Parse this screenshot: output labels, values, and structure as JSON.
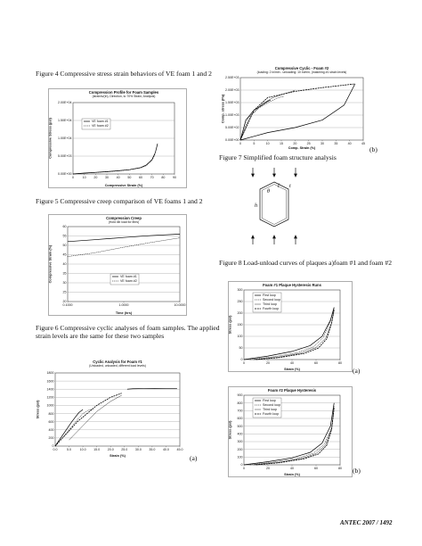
{
  "captions": {
    "fig4": "Figure 4 Compressive stress strain behaviors of VE foam 1 and 2",
    "fig5": "Figure 5 Compressive creep comparison of VE foams 1 and 2",
    "fig6": "Figure 6 Compressive cyclic analyses of foam samples. The applied strain levels are the same for these two samples",
    "fig7": "Figure 7 Simplified foam structure analysis",
    "fig8": "Figure 8 Load-unload curves of plaques a)foam #1 and foam #2"
  },
  "panel_labels": {
    "a": "(a)",
    "b": "(b)"
  },
  "footer": "ANTEC 2007 / 1492",
  "fig7_labels": {
    "l": "l",
    "t": "t",
    "h": "h",
    "theta": "θ"
  },
  "chart_data": [
    {
      "id": "fig4",
      "type": "line",
      "title": "Compression Profile for Foam Samples",
      "subtitle": "(strain/s/(in), Direction, to 70% Strain, Analysis)",
      "xlabel": "Compressive Strain (%)",
      "ylabel": "Compressive Stress (psi)",
      "xlim": [
        0,
        90
      ],
      "ylim": [
        0,
        20000
      ],
      "x_ticks": [
        "0",
        "10",
        "20",
        "30",
        "40",
        "50",
        "60",
        "70",
        "80",
        "90"
      ],
      "y_ticks": [
        "0.00E+00",
        "5.00E+03",
        "1.00E+04",
        "1.50E+04",
        "2.00E+04"
      ],
      "legend": [
        "VE foam #1",
        "VE foam #2"
      ],
      "series": [
        {
          "name": "VE foam #1",
          "x": [
            0,
            10,
            20,
            30,
            40,
            50,
            60,
            65,
            70,
            73,
            75
          ],
          "y": [
            0,
            250,
            450,
            650,
            900,
            1200,
            1800,
            2500,
            4000,
            6000,
            8500
          ]
        },
        {
          "name": "VE foam #2",
          "x": [
            0,
            10,
            20,
            30,
            40,
            50,
            60,
            65,
            70,
            73
          ],
          "y": [
            0,
            220,
            400,
            600,
            850,
            1150,
            1700,
            2300,
            3800,
            5600
          ]
        }
      ]
    },
    {
      "id": "fig5",
      "type": "line",
      "title": "Compression Creep",
      "subtitle": "(Hold 4lb load for 8hrs)",
      "xlabel": "Time (hrs)",
      "ylabel": "Compressive Strain (%)",
      "x_log": true,
      "xlim": [
        0.1,
        10
      ],
      "ylim": [
        20,
        60
      ],
      "x_ticks": [
        "0.1000",
        "1.0000",
        "10.0000"
      ],
      "y_ticks": [
        "20",
        "25",
        "30",
        "35",
        "40",
        "45",
        "50",
        "55",
        "60"
      ],
      "legend": [
        "VE foam #1",
        "VE foam #2"
      ],
      "series": [
        {
          "name": "VE foam #1",
          "x": [
            0.1,
            0.3,
            1,
            3,
            10
          ],
          "y": [
            52,
            53,
            54.2,
            55.2,
            56
          ]
        },
        {
          "name": "VE foam #2",
          "x": [
            0.1,
            0.3,
            1,
            3,
            10
          ],
          "y": [
            44,
            46,
            49,
            51.5,
            54
          ]
        }
      ]
    },
    {
      "id": "fig6a",
      "type": "line",
      "title": "Cyclic Analysis for Foam #1",
      "subtitle": "(Unloaded, unloaded, different load levels)",
      "xlabel": "Strain (%)",
      "ylabel": "Stress (psi)",
      "xlim": [
        0,
        45
      ],
      "ylim": [
        0,
        1800
      ],
      "x_ticks": [
        "0.0",
        "5.0",
        "10.0",
        "15.0",
        "20.0",
        "25.0",
        "30.0",
        "35.0",
        "40.0",
        "45.0"
      ],
      "y_ticks": [
        "0",
        "200",
        "400",
        "600",
        "800",
        "1000",
        "1200",
        "1400",
        "1600",
        "1800"
      ],
      "series": [
        {
          "name": "",
          "x": [
            0,
            3,
            6,
            8.5,
            10
          ],
          "y": [
            0,
            300,
            600,
            820,
            900
          ]
        },
        {
          "name": "",
          "x": [
            2,
            5,
            8,
            10,
            12,
            14
          ],
          "y": [
            150,
            400,
            650,
            800,
            880,
            920
          ]
        },
        {
          "name": "",
          "x": [
            5,
            10,
            15,
            20,
            24
          ],
          "y": [
            150,
            500,
            850,
            1100,
            1250
          ]
        },
        {
          "name": "",
          "x": [
            0,
            8,
            15,
            20,
            24
          ],
          "y": [
            0,
            600,
            1000,
            1200,
            1300
          ]
        },
        {
          "name": "",
          "x": [
            26,
            28,
            32,
            36,
            40,
            44
          ],
          "y": [
            1400,
            1410,
            1415,
            1418,
            1420,
            1420
          ]
        }
      ]
    },
    {
      "id": "fig6b",
      "type": "line",
      "title": "Compressive Cyclic - Foam #2",
      "subtitle": "(loading: 2 in/min - unloading: 10 in/min, (matching #1 strain levels)",
      "xlabel": "Comp. Strain (%)",
      "ylabel": "Comp. stress (Pa)",
      "xlim": [
        0,
        45
      ],
      "ylim": [
        0,
        25000
      ],
      "x_ticks": [
        "0",
        "5",
        "10",
        "15",
        "20",
        "25",
        "30",
        "35",
        "40",
        "45"
      ],
      "y_ticks": [
        "0.00E+00",
        "5.00E+02",
        "1.00E+03",
        "1.50E+03",
        "2.00E+03",
        "2.50E+03"
      ],
      "series": [
        {
          "name": "",
          "x": [
            0,
            2,
            5,
            8,
            10,
            11
          ],
          "y": [
            0,
            8000,
            12000,
            14000,
            15500,
            16000
          ]
        },
        {
          "name": "",
          "x": [
            0,
            3,
            7,
            11,
            14,
            16
          ],
          "y": [
            0,
            9000,
            13000,
            15500,
            17000,
            17500
          ]
        },
        {
          "name": "",
          "x": [
            0,
            4,
            8,
            12,
            16,
            19,
            20
          ],
          "y": [
            0,
            10000,
            14500,
            17000,
            18500,
            19500,
            20000
          ]
        },
        {
          "name": "",
          "x": [
            0,
            5,
            10,
            20,
            30,
            38,
            42
          ],
          "y": [
            0,
            12000,
            17000,
            19500,
            21000,
            22000,
            22500
          ]
        },
        {
          "name": "",
          "x": [
            42,
            38,
            30,
            20,
            10,
            5,
            0
          ],
          "y": [
            22500,
            14000,
            8000,
            5000,
            3000,
            1500,
            0
          ]
        }
      ]
    },
    {
      "id": "fig8a",
      "type": "line",
      "title": "Foam #1 Plaque Hysteresis Runs",
      "xlabel": "Strain (%)",
      "ylabel": "Stress (psi)",
      "xlim": [
        0,
        80
      ],
      "ylim": [
        0,
        300
      ],
      "x_ticks": [
        "0",
        "20",
        "40",
        "60",
        "80"
      ],
      "y_ticks": [
        "0",
        "50",
        "100",
        "150",
        "200",
        "250",
        "300"
      ],
      "legend": [
        "First loop",
        "Second loop",
        "Third loop",
        "Fourth loop"
      ],
      "series": [
        {
          "name": "First loop",
          "x": [
            0,
            20,
            40,
            55,
            65,
            72,
            75
          ],
          "y": [
            0,
            15,
            35,
            60,
            100,
            170,
            225
          ]
        },
        {
          "name": "Second loop",
          "x": [
            5,
            25,
            45,
            58,
            66,
            72,
            75
          ],
          "y": [
            0,
            12,
            30,
            55,
            95,
            165,
            220
          ]
        },
        {
          "name": "Third loop",
          "x": [
            8,
            28,
            48,
            60,
            68,
            73,
            75
          ],
          "y": [
            0,
            10,
            28,
            52,
            92,
            160,
            215
          ]
        },
        {
          "name": "Fourth loop",
          "x": [
            10,
            30,
            50,
            62,
            69,
            73,
            75
          ],
          "y": [
            0,
            9,
            26,
            50,
            90,
            158,
            212
          ]
        }
      ]
    },
    {
      "id": "fig8b",
      "type": "line",
      "title": "Foam #2 Plaque Hysteresis",
      "xlabel": "Strain (%)",
      "ylabel": "Stress (psi)",
      "xlim": [
        0,
        80
      ],
      "ylim": [
        0,
        900
      ],
      "x_ticks": [
        "0",
        "20",
        "40",
        "60",
        "80"
      ],
      "y_ticks": [
        "0",
        "100",
        "200",
        "300",
        "400",
        "500",
        "600",
        "700",
        "800",
        "900"
      ],
      "legend": [
        "First loop",
        "Second loop",
        "Third loop",
        "Fourth loop"
      ],
      "series": [
        {
          "name": "First loop",
          "x": [
            0,
            20,
            40,
            55,
            65,
            72,
            75
          ],
          "y": [
            0,
            40,
            90,
            160,
            280,
            500,
            800
          ]
        },
        {
          "name": "Second loop",
          "x": [
            5,
            25,
            45,
            58,
            67,
            73,
            75
          ],
          "y": [
            0,
            35,
            85,
            150,
            270,
            480,
            760
          ]
        },
        {
          "name": "Third loop",
          "x": [
            8,
            28,
            48,
            60,
            68,
            73,
            75
          ],
          "y": [
            0,
            30,
            80,
            145,
            260,
            470,
            740
          ]
        },
        {
          "name": "Fourth loop",
          "x": [
            10,
            30,
            50,
            62,
            69,
            73,
            75
          ],
          "y": [
            0,
            28,
            78,
            140,
            255,
            460,
            730
          ]
        }
      ]
    }
  ]
}
